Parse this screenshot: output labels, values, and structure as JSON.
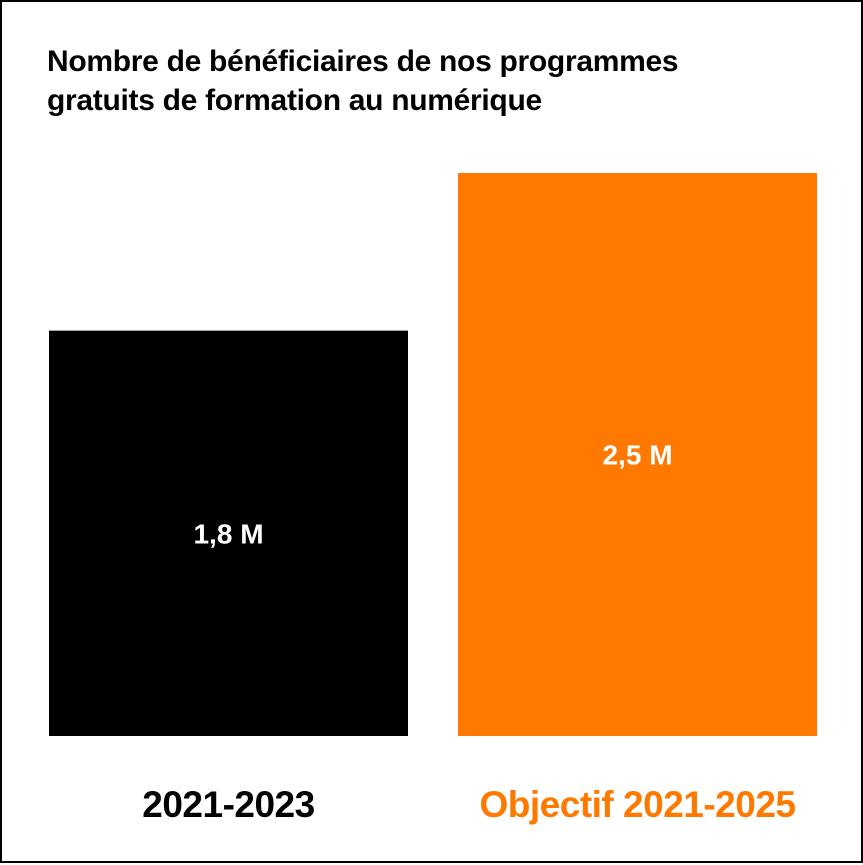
{
  "title_lines": [
    "Nombre de bénéficiaires de nos programmes",
    "gratuits de formation au numérique"
  ],
  "colors": {
    "frame": "#000000",
    "background": "#ffffff",
    "bar_actual": "#000000",
    "bar_target": "#ff7900",
    "label_actual": "#000000",
    "label_target": "#ff7900",
    "value_text": "#ffffff"
  },
  "chart_data": {
    "type": "bar",
    "title": "Nombre de bénéficiaires de nos programmes gratuits de formation au numérique",
    "categories": [
      "2021-2023",
      "Objectif 2021-2025"
    ],
    "values": [
      1.8,
      2.5
    ],
    "value_labels": [
      "1,8 M",
      "2,5 M"
    ],
    "unit": "M",
    "bar_colors": [
      "#000000",
      "#ff7900"
    ],
    "category_label_colors": [
      "#000000",
      "#ff7900"
    ],
    "xlabel": "",
    "ylabel": "",
    "ylim": [
      0,
      2.5
    ],
    "grid": false,
    "legend": "none"
  }
}
